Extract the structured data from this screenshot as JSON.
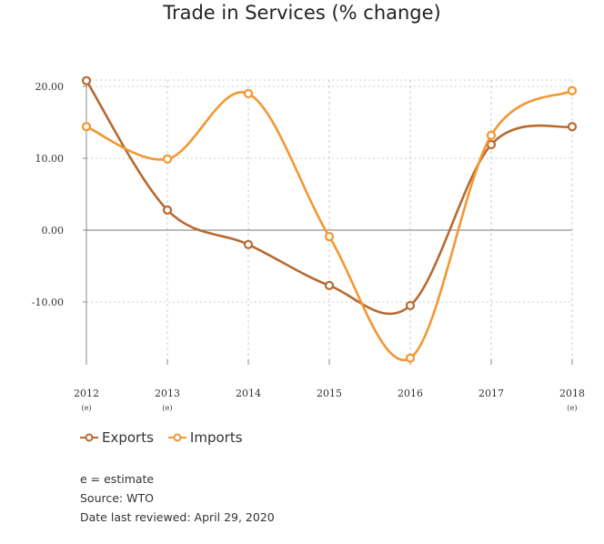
{
  "title": "Trade in Services (% change)",
  "chart_data": {
    "type": "line",
    "title": "Trade in Services (% change)",
    "xlabel": "",
    "ylabel": "",
    "categories": [
      "2012",
      "2013",
      "2014",
      "2015",
      "2016",
      "2017",
      "2018"
    ],
    "category_notes": [
      "(e)",
      "(e)",
      "",
      "",
      "",
      "",
      "(e)"
    ],
    "ylim": [
      -18,
      22
    ],
    "yticks": [
      -10,
      0,
      10,
      20
    ],
    "ytick_labels": [
      "-10.00",
      "0.00",
      "10.00",
      "20.00"
    ],
    "grid": true,
    "legend_position": "bottom-left",
    "series": [
      {
        "name": "Exports",
        "color": "#b86a30",
        "values": [
          20.8,
          2.8,
          -2.0,
          -7.7,
          -10.5,
          11.9,
          14.4
        ]
      },
      {
        "name": "Imports",
        "color": "#f39733",
        "values": [
          14.4,
          9.9,
          19.0,
          -0.9,
          -17.8,
          13.2,
          19.4
        ]
      }
    ]
  },
  "legend": {
    "exports_label": "Exports",
    "imports_label": "Imports"
  },
  "notes": {
    "estimate": "e = estimate",
    "source": "Source: WTO",
    "reviewed": "Date last reviewed: April 29, 2020"
  }
}
